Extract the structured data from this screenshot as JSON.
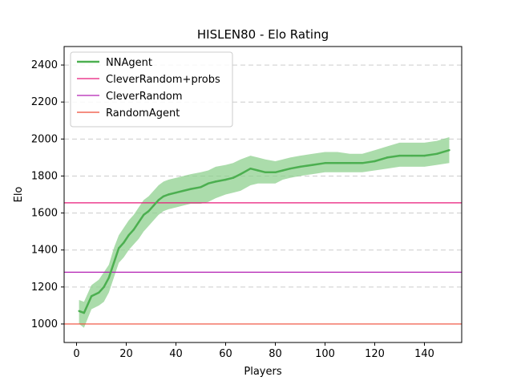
{
  "chart_data": {
    "type": "line",
    "title": "HISLEN80 - Elo Rating",
    "xlabel": "Players",
    "ylabel": "Elo",
    "xlim": [
      -5,
      155
    ],
    "ylim": [
      900,
      2500
    ],
    "xticks": [
      0,
      20,
      40,
      60,
      80,
      100,
      120,
      140
    ],
    "yticks": [
      1000,
      1200,
      1400,
      1600,
      1800,
      2000,
      2200,
      2400
    ],
    "grid": "horizontal-dashed",
    "legend_position": "top-left",
    "series": [
      {
        "name": "NNAgent",
        "kind": "line-with-band",
        "color": "#4caf50",
        "band_color": "#8fd08f",
        "x": [
          1,
          3,
          6,
          9,
          11,
          13,
          15,
          17,
          19,
          21,
          23,
          25,
          27,
          29,
          31,
          33,
          35,
          37,
          40,
          43,
          46,
          50,
          53,
          56,
          60,
          63,
          66,
          70,
          73,
          76,
          80,
          83,
          86,
          90,
          95,
          100,
          105,
          110,
          115,
          120,
          125,
          130,
          135,
          140,
          145,
          150
        ],
        "y": [
          1070,
          1060,
          1150,
          1170,
          1200,
          1250,
          1330,
          1410,
          1440,
          1480,
          1510,
          1550,
          1590,
          1610,
          1640,
          1670,
          1690,
          1700,
          1710,
          1720,
          1730,
          1740,
          1760,
          1770,
          1780,
          1790,
          1810,
          1840,
          1830,
          1820,
          1820,
          1830,
          1840,
          1850,
          1860,
          1870,
          1870,
          1870,
          1870,
          1880,
          1900,
          1910,
          1910,
          1910,
          1920,
          1940
        ],
        "lower": [
          1000,
          980,
          1080,
          1100,
          1120,
          1170,
          1250,
          1330,
          1360,
          1400,
          1430,
          1460,
          1500,
          1530,
          1560,
          1590,
          1610,
          1620,
          1630,
          1640,
          1650,
          1650,
          1660,
          1680,
          1700,
          1710,
          1720,
          1750,
          1760,
          1760,
          1760,
          1780,
          1790,
          1800,
          1810,
          1820,
          1820,
          1820,
          1820,
          1830,
          1840,
          1850,
          1850,
          1850,
          1860,
          1870
        ],
        "upper": [
          1130,
          1120,
          1210,
          1240,
          1280,
          1320,
          1410,
          1480,
          1520,
          1560,
          1590,
          1630,
          1670,
          1690,
          1720,
          1750,
          1770,
          1780,
          1790,
          1800,
          1810,
          1820,
          1830,
          1850,
          1860,
          1870,
          1890,
          1910,
          1900,
          1890,
          1880,
          1890,
          1900,
          1910,
          1920,
          1930,
          1930,
          1920,
          1920,
          1940,
          1960,
          1980,
          1980,
          1980,
          1990,
          2010
        ]
      },
      {
        "name": "CleverRandom+probs",
        "kind": "hline",
        "color": "#e8197a",
        "value": 1655
      },
      {
        "name": "CleverRandom",
        "kind": "hline",
        "color": "#b321b3",
        "value": 1280
      },
      {
        "name": "RandomAgent",
        "kind": "hline",
        "color": "#ef4a36",
        "value": 1000
      }
    ]
  }
}
